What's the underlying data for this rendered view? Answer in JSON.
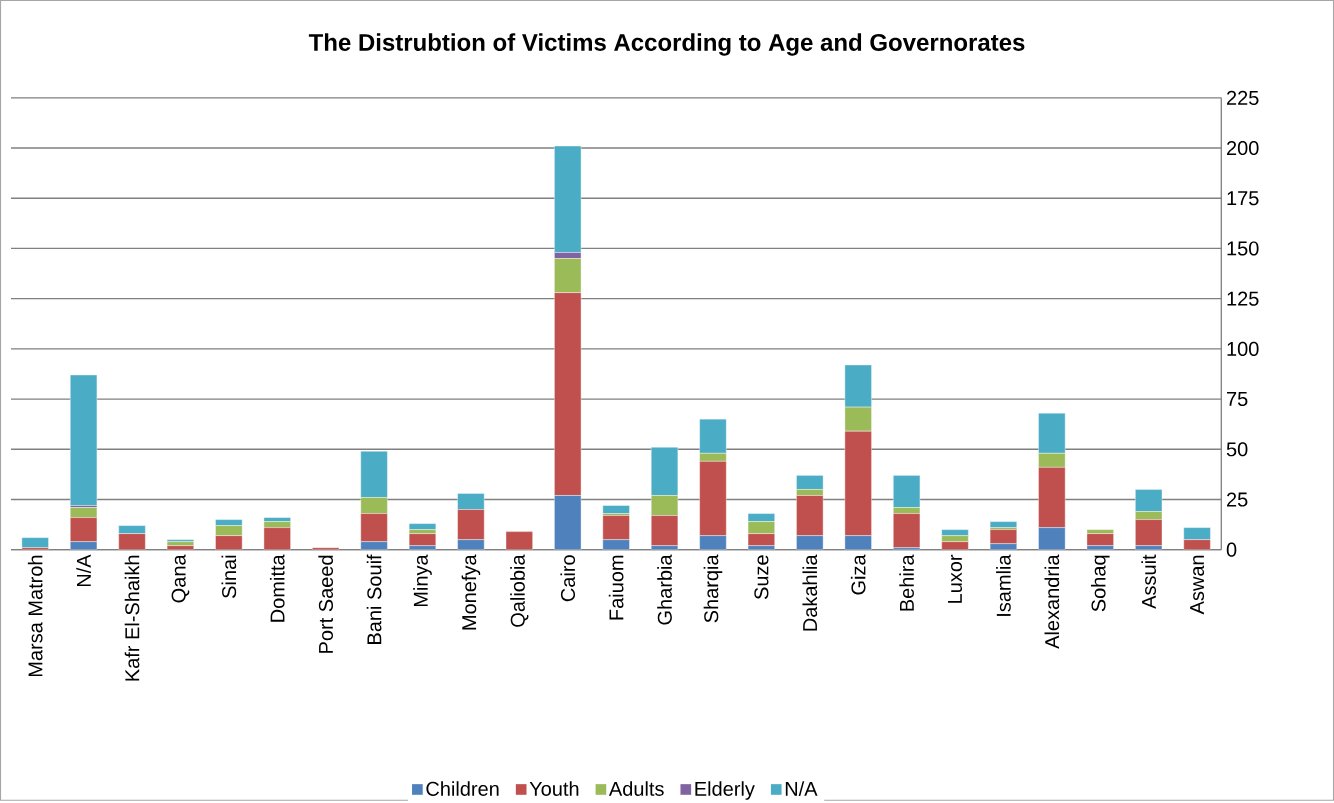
{
  "chart_data": {
    "type": "bar",
    "stacked": true,
    "title": "The Distrubtion of Victims According to Age and Governorates",
    "categories": [
      "Marsa Matroh",
      "N/A",
      "Kafr El-Shaikh",
      "Qana",
      "Sinai",
      "Domitta",
      "Port Saeed",
      "Bani Souif",
      "Minya",
      "Monefya",
      "Qaliobia",
      "Cairo",
      "Faiuom",
      "Gharbia",
      "Sharqia",
      "Suze",
      "Dakahlia",
      "Giza",
      "Behira",
      "Luxor",
      "Isamlia",
      "Alexandria",
      "Sohaq",
      "Assuit",
      "Aswan"
    ],
    "series": [
      {
        "name": "Children",
        "color": "#4f81bd",
        "values": [
          0,
          4,
          0,
          0,
          0,
          0,
          0,
          4,
          2,
          5,
          0,
          27,
          5,
          2,
          7,
          2,
          7,
          7,
          1,
          0,
          3,
          11,
          2,
          2,
          0
        ]
      },
      {
        "name": "Youth",
        "color": "#c0504d",
        "values": [
          1,
          12,
          8,
          2,
          7,
          11,
          1,
          14,
          6,
          15,
          9,
          101,
          12,
          15,
          37,
          6,
          20,
          52,
          17,
          4,
          7,
          30,
          6,
          13,
          5
        ]
      },
      {
        "name": "Adults",
        "color": "#9bbb59",
        "values": [
          0,
          5,
          0,
          2,
          5,
          3,
          0,
          8,
          2,
          0,
          0,
          17,
          1,
          10,
          4,
          6,
          3,
          12,
          3,
          3,
          1,
          7,
          2,
          4,
          0
        ]
      },
      {
        "name": "Elderly",
        "color": "#8064a2",
        "values": [
          0,
          1,
          0,
          0,
          0,
          0,
          0,
          0,
          0,
          0,
          0,
          3,
          0,
          0,
          0,
          0,
          0,
          0,
          0,
          0,
          0,
          0,
          0,
          0,
          0
        ]
      },
      {
        "name": "N/A",
        "color": "#4bacc6",
        "values": [
          5,
          65,
          4,
          1,
          3,
          2,
          0,
          23,
          3,
          8,
          0,
          53,
          4,
          24,
          17,
          4,
          7,
          21,
          16,
          3,
          3,
          20,
          0,
          11,
          6
        ]
      }
    ],
    "ylim": [
      0,
      225
    ],
    "yticks": [
      0,
      25,
      50,
      75,
      100,
      125,
      150,
      175,
      200,
      225
    ],
    "grid": "y",
    "legend": "bottom"
  }
}
